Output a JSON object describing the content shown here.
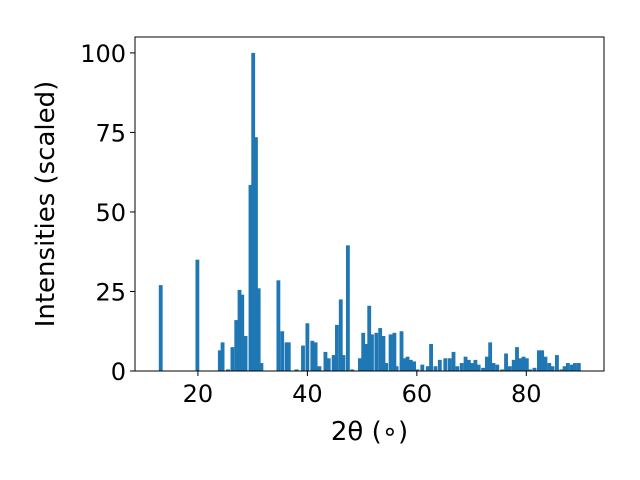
{
  "chart_data": {
    "type": "bar",
    "title": "",
    "xlabel": "2θ (∘)",
    "ylabel": "Intensities (scaled)",
    "xlim": [
      8.5,
      94.2
    ],
    "ylim": [
      0,
      105
    ],
    "xticks": [
      20,
      40,
      60,
      80
    ],
    "yticks": [
      0,
      25,
      50,
      75,
      100
    ],
    "grid": false,
    "bar_color": "#1f77b4",
    "bar_width": 0.7,
    "x": [
      13.2,
      19.9,
      24.0,
      24.5,
      25.5,
      26.3,
      27.0,
      27.6,
      28.1,
      28.7,
      29.6,
      30.1,
      30.6,
      31.1,
      31.6,
      34.7,
      35.4,
      36.2,
      36.6,
      38.0,
      39.2,
      40.0,
      40.9,
      41.5,
      42.2,
      43.3,
      43.9,
      44.8,
      45.4,
      46.1,
      46.6,
      47.4,
      48.2,
      49.6,
      50.2,
      50.8,
      51.3,
      51.8,
      52.6,
      53.3,
      53.9,
      54.4,
      55.2,
      55.9,
      56.3,
      57.2,
      57.8,
      58.3,
      58.9,
      59.5,
      60.1,
      61.0,
      62.0,
      62.6,
      63.4,
      64.2,
      65.2,
      66.0,
      66.7,
      67.4,
      68.2,
      68.9,
      69.5,
      70.1,
      70.7,
      71.3,
      72.1,
      72.8,
      73.4,
      74.0,
      74.7,
      75.6,
      76.3,
      77.0,
      77.7,
      78.3,
      78.9,
      79.5,
      80.1,
      80.7,
      81.5,
      82.3,
      82.9,
      83.5,
      84.2,
      84.8,
      85.6,
      86.4,
      87.0,
      87.6,
      88.3,
      88.9,
      89.6
    ],
    "values": [
      27,
      35,
      6.5,
      9,
      0.5,
      7.5,
      16,
      25.5,
      24,
      11,
      58.5,
      100,
      73.5,
      26,
      2.5,
      28.5,
      12.5,
      9,
      9,
      0.5,
      8,
      15,
      9.5,
      9,
      1.5,
      6,
      4,
      5,
      14.5,
      22.5,
      5,
      39.5,
      0.5,
      4,
      12,
      8.5,
      20.5,
      11.5,
      12,
      13.5,
      11,
      2.5,
      11.5,
      12,
      1.5,
      12.5,
      4,
      4.5,
      3.5,
      3,
      0.5,
      2,
      1.5,
      8.5,
      1.5,
      3.5,
      4,
      4,
      6,
      1.5,
      2.5,
      4.5,
      3.5,
      2.5,
      3.5,
      2,
      1,
      4.5,
      9,
      2.5,
      2,
      0.5,
      5.5,
      1.5,
      3.5,
      7.5,
      4,
      4.5,
      4,
      0.5,
      1,
      6.5,
      6.5,
      4.5,
      2.5,
      1.5,
      5,
      0.5,
      1.5,
      2.5,
      2,
      2.5,
      2.5
    ]
  }
}
